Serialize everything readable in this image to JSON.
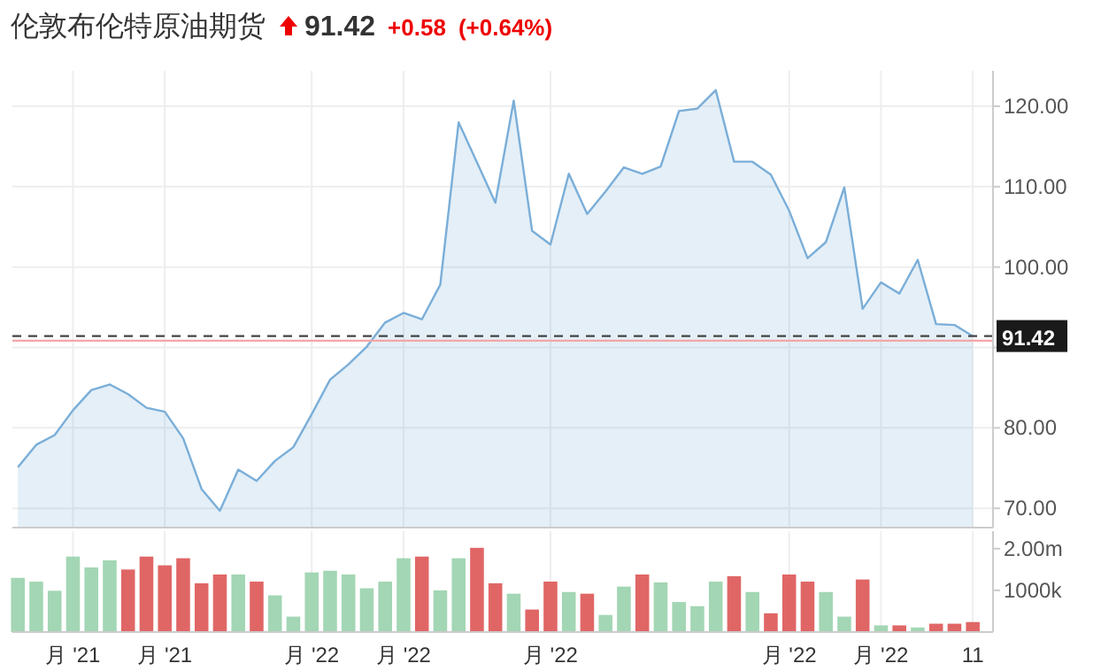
{
  "chart_data": [
    {
      "type": "area",
      "title": "伦敦布伦特原油期货",
      "annotations": [
        "91.42",
        "+0.58",
        "(+0.64%)"
      ],
      "color": "#7aaed8",
      "categories": [
        null,
        null,
        null,
        null,
        null,
        null,
        null,
        null,
        null,
        null,
        null,
        null,
        null,
        null,
        null,
        null,
        null,
        null,
        null,
        null,
        null,
        null,
        null,
        null,
        null,
        null,
        null,
        null,
        null,
        null,
        null,
        null,
        null,
        null,
        null,
        null,
        null,
        null,
        null,
        null,
        null,
        null,
        null,
        null,
        null,
        null,
        null,
        null,
        null,
        null,
        null,
        null,
        null
      ],
      "values": [
        75.1,
        77.9,
        79.1,
        82.2,
        84.7,
        85.4,
        84.2,
        82.5,
        82.0,
        78.7,
        72.4,
        69.7,
        74.8,
        73.4,
        75.9,
        77.6,
        81.7,
        86.0,
        87.9,
        90.1,
        93.1,
        94.3,
        93.5,
        97.8,
        118.0,
        113.0,
        108.0,
        120.7,
        104.5,
        102.8,
        111.6,
        106.6,
        109.4,
        112.4,
        111.6,
        112.5,
        119.4,
        119.7,
        122.0,
        113.1,
        113.1,
        111.5,
        107.0,
        101.1,
        103.1,
        109.9,
        94.8,
        98.1,
        96.7,
        100.9,
        92.9,
        92.8,
        91.4
      ],
      "ylim": [
        67.6,
        124.4
      ],
      "yticks": [
        {
          "value": 70,
          "label": "70.00"
        },
        {
          "value": 80,
          "label": "80.00"
        },
        {
          "value": 90,
          "label": null
        },
        {
          "value": 100,
          "label": "100.00"
        },
        {
          "value": 110,
          "label": "110.00"
        },
        {
          "value": 120,
          "label": "120.00"
        }
      ],
      "ref_lines": [
        {
          "axis": "y",
          "value": 90.84,
          "color": "#f4a6a6",
          "line_style": "solid"
        },
        {
          "axis": "y",
          "value": 91.42,
          "label": "91.42",
          "color": "#444444",
          "line_style": "dashed"
        }
      ],
      "grid": true,
      "tick_labels": "y"
    },
    {
      "type": "bar",
      "categories": [
        null,
        null,
        null,
        "月 '21",
        null,
        null,
        null,
        null,
        "月 '21",
        null,
        null,
        null,
        null,
        null,
        null,
        null,
        "月 '22",
        null,
        null,
        null,
        null,
        "月 '22",
        null,
        null,
        null,
        null,
        null,
        null,
        null,
        "月 '22",
        null,
        null,
        null,
        null,
        null,
        null,
        null,
        null,
        null,
        null,
        null,
        null,
        "月 '22",
        null,
        null,
        null,
        null,
        "月 '22",
        null,
        null,
        null,
        null,
        "11"
      ],
      "values": [
        1300000,
        1210000,
        990000,
        1810000,
        1550000,
        1720000,
        1500000,
        1810000,
        1600000,
        1770000,
        1170000,
        1380000,
        1380000,
        1210000,
        880000,
        370000,
        1430000,
        1470000,
        1380000,
        1050000,
        1210000,
        1770000,
        1810000,
        1000000,
        1770000,
        2020000,
        1170000,
        920000,
        540000,
        1210000,
        960000,
        920000,
        410000,
        1090000,
        1380000,
        1190000,
        720000,
        620000,
        1210000,
        1340000,
        960000,
        450000,
        1380000,
        1210000,
        960000,
        370000,
        1260000,
        160000,
        160000,
        110000,
        200000,
        200000,
        240000
      ],
      "colors": [
        "#a3d6b4",
        "#a3d6b4",
        "#a3d6b4",
        "#a3d6b4",
        "#a3d6b4",
        "#a3d6b4",
        "#e06666",
        "#e06666",
        "#e06666",
        "#e06666",
        "#e06666",
        "#e06666",
        "#a3d6b4",
        "#e06666",
        "#a3d6b4",
        "#a3d6b4",
        "#a3d6b4",
        "#a3d6b4",
        "#a3d6b4",
        "#a3d6b4",
        "#a3d6b4",
        "#a3d6b4",
        "#e06666",
        "#a3d6b4",
        "#a3d6b4",
        "#e06666",
        "#e06666",
        "#a3d6b4",
        "#e06666",
        "#e06666",
        "#a3d6b4",
        "#e06666",
        "#a3d6b4",
        "#a3d6b4",
        "#e06666",
        "#a3d6b4",
        "#a3d6b4",
        "#a3d6b4",
        "#a3d6b4",
        "#e06666",
        "#a3d6b4",
        "#e06666",
        "#e06666",
        "#e06666",
        "#a3d6b4",
        "#a3d6b4",
        "#e06666",
        "#a3d6b4",
        "#e06666",
        "#a3d6b4",
        "#e06666",
        "#e06666",
        "#e06666"
      ],
      "ylim": [
        0,
        2420000
      ],
      "yticks": [
        {
          "value": 1000000,
          "label": "1000k"
        },
        {
          "value": 2000000,
          "label": "2.00m"
        }
      ],
      "grid": "x"
    }
  ]
}
